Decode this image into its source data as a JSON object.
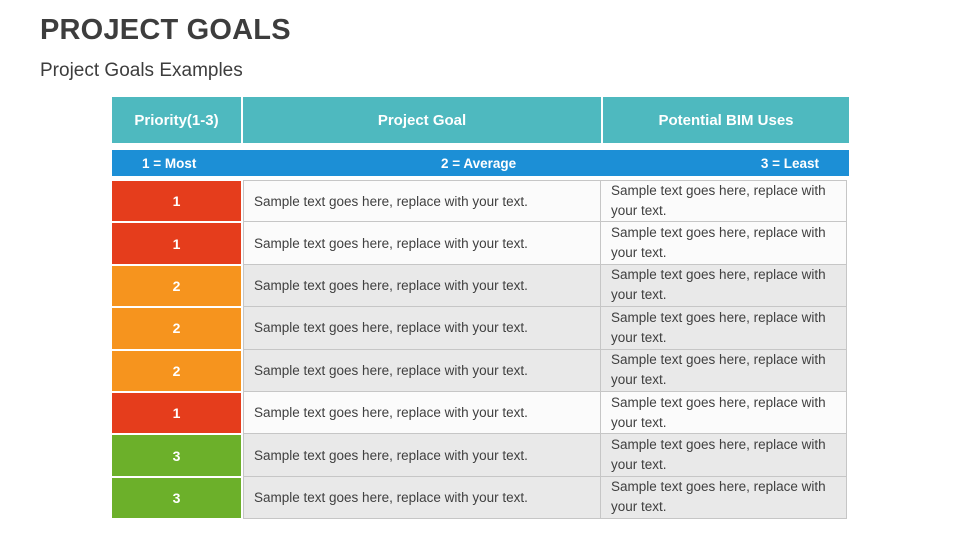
{
  "slide": {
    "title": "PROJECT GOALS",
    "subtitle": "Project Goals Examples"
  },
  "table": {
    "columns": [
      "Priority(1-3)",
      "Project Goal",
      "Potential BIM Uses"
    ],
    "legend": {
      "most": "1 = Most",
      "average": "2 = Average",
      "least": "3 = Least"
    },
    "rows": [
      {
        "priority": "1",
        "priority_color": "#E53D1C",
        "row_bg": "#FBFBFB",
        "goal": "Sample text goes here, replace with your text.",
        "bim": "Sample text goes here, replace with your text."
      },
      {
        "priority": "1",
        "priority_color": "#E53D1C",
        "row_bg": "#FBFBFB",
        "goal": "Sample text goes here, replace with your text.",
        "bim": "Sample text goes here, replace with your text."
      },
      {
        "priority": "2",
        "priority_color": "#F6941E",
        "row_bg": "#E9E9E9",
        "goal": "Sample text goes here, replace with your text.",
        "bim": "Sample text goes here, replace with your text."
      },
      {
        "priority": "2",
        "priority_color": "#F6941E",
        "row_bg": "#E9E9E9",
        "goal": "Sample text goes here, replace with your text.",
        "bim": "Sample text goes here, replace with your text."
      },
      {
        "priority": "2",
        "priority_color": "#F6941E",
        "row_bg": "#E9E9E9",
        "goal": "Sample text goes here, replace with your text.",
        "bim": "Sample text goes here, replace with your text."
      },
      {
        "priority": "1",
        "priority_color": "#E53D1C",
        "row_bg": "#FBFBFB",
        "goal": "Sample text goes here, replace with your text.",
        "bim": "Sample text goes here, replace with your text."
      },
      {
        "priority": "3",
        "priority_color": "#6CB02A",
        "row_bg": "#E9E9E9",
        "goal": "Sample text goes here, replace with your text.",
        "bim": "Sample text goes here, replace with your text."
      },
      {
        "priority": "3",
        "priority_color": "#6CB02A",
        "row_bg": "#E9E9E9",
        "goal": "Sample text goes here, replace with your text.",
        "bim": "Sample text goes here, replace with your text."
      }
    ],
    "colors": {
      "header_teal": "#4EB9BF",
      "legend_blue": "#1C8FD6",
      "priority_1_red": "#E53D1C",
      "priority_2_orange": "#F6941E",
      "priority_3_green": "#6CB02A",
      "cell_border": "#C6C6C6",
      "row_light": "#FBFBFB",
      "row_gray": "#E9E9E9",
      "text_dark": "#3F3F3F"
    }
  }
}
